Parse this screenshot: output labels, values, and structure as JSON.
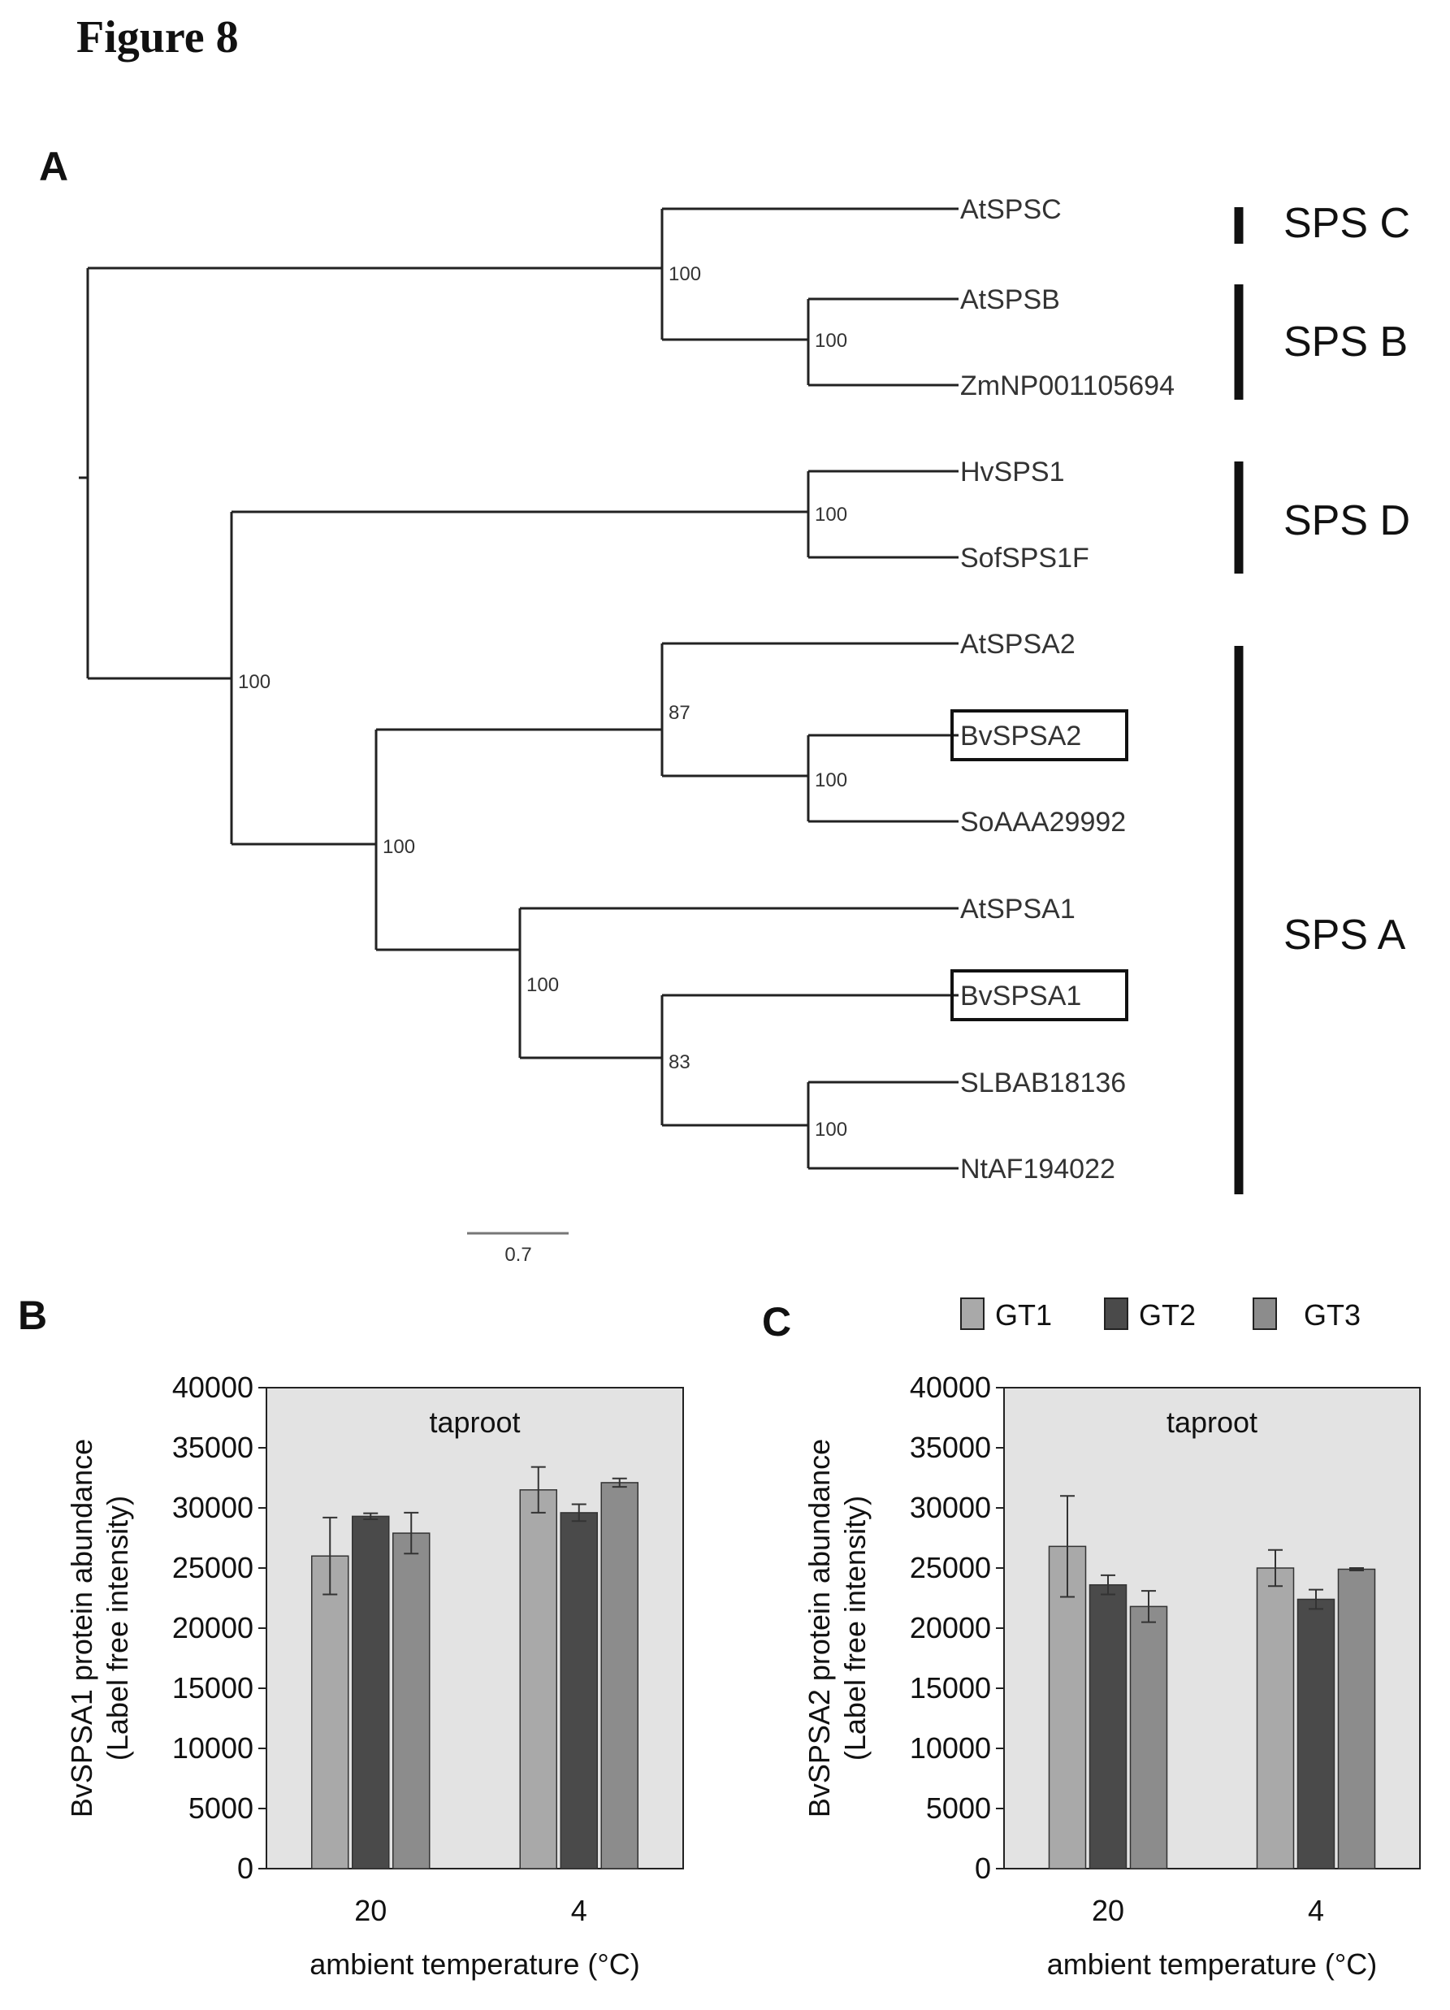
{
  "figure_title": "Figure 8",
  "panel_labels": {
    "a": "A",
    "b": "B",
    "c": "C"
  },
  "tree": {
    "taxa": [
      "AtSPSC",
      "AtSPSB",
      "ZmNP001105694",
      "HvSPS1",
      "SofSPS1F",
      "AtSPSA2",
      "BvSPSA2",
      "SoAAA29992",
      "AtSPSA1",
      "BvSPSA1",
      "SLBAB18136",
      "NtAF194022"
    ],
    "boxed_taxa": [
      "BvSPSA2",
      "BvSPSA1"
    ],
    "bootstrap": [
      "100",
      "100",
      "100",
      "100",
      "87",
      "100",
      "100",
      "100",
      "83",
      "100"
    ],
    "clades": [
      "SPS C",
      "SPS B",
      "SPS D",
      "SPS A"
    ],
    "scale_bar_label": "0.7"
  },
  "legend": [
    "GT1",
    "GT2",
    "GT3"
  ],
  "colors": {
    "GT1": "#a9a9a9",
    "GT2": "#4a4a4a",
    "GT3": "#8c8c8c",
    "plot_bg": "#e3e3e3"
  },
  "chart_data": [
    {
      "type": "bar",
      "title": "taproot",
      "ylabel": "BvSPSA1 protein abundance (Label free intensity)",
      "ylabel_lines": [
        "BvSPSA1 protein abundance",
        "(Label free intensity)"
      ],
      "xlabel": "ambient temperature (°C)",
      "categories": [
        "20",
        "4"
      ],
      "ylim": [
        0,
        40000
      ],
      "yticks": [
        "0",
        "5000",
        "10000",
        "15000",
        "20000",
        "25000",
        "30000",
        "35000",
        "40000"
      ],
      "series": [
        {
          "name": "GT1",
          "values": [
            26000,
            31500
          ],
          "errors": [
            3200,
            1900
          ]
        },
        {
          "name": "GT2",
          "values": [
            29300,
            29600
          ],
          "errors": [
            250,
            700
          ]
        },
        {
          "name": "GT3",
          "values": [
            27900,
            32100
          ],
          "errors": [
            1700,
            350
          ]
        }
      ]
    },
    {
      "type": "bar",
      "title": "taproot",
      "ylabel": "BvSPSA2 protein abundance (Label free intensity)",
      "ylabel_lines": [
        "BvSPSA2 protein abundance",
        "(Label free intensity)"
      ],
      "xlabel": "ambient temperature (°C)",
      "categories": [
        "20",
        "4"
      ],
      "ylim": [
        0,
        40000
      ],
      "yticks": [
        "0",
        "5000",
        "10000",
        "15000",
        "20000",
        "25000",
        "30000",
        "35000",
        "40000"
      ],
      "series": [
        {
          "name": "GT1",
          "values": [
            26800,
            25000
          ],
          "errors": [
            4200,
            1500
          ]
        },
        {
          "name": "GT2",
          "values": [
            23600,
            22400
          ],
          "errors": [
            800,
            800
          ]
        },
        {
          "name": "GT3",
          "values": [
            21800,
            24900
          ],
          "errors": [
            1300,
            100
          ]
        }
      ]
    }
  ]
}
